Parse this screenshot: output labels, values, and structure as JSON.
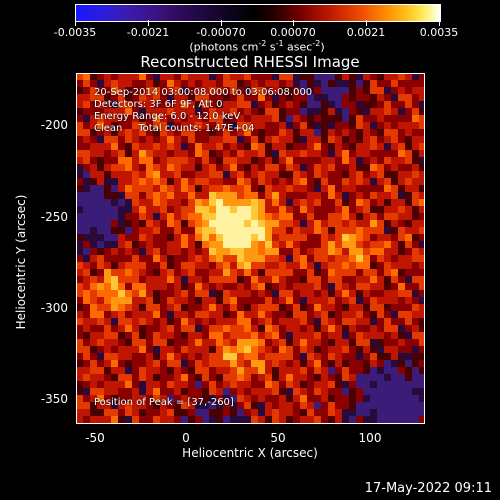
{
  "colorbar": {
    "tick_labels": [
      "-0.0035",
      "-0.0021",
      "-0.00070",
      "0.00070",
      "0.0021",
      "0.0035"
    ],
    "units_prefix": "(photons cm",
    "units_sup1": "-2",
    "units_mid1": " s",
    "units_sup2": "-1",
    "units_mid2": " asec",
    "units_sup3": "-2",
    "units_suffix": ")"
  },
  "title": "Reconstructed RHESSI Image",
  "info": {
    "line1": "20-Sep-2014 03:00:08.000 to 03:06:08.000",
    "line2": "Detectors: 3F 6F 9F, Att 0",
    "line3": "Energy Range: 6.0 - 12.0 keV",
    "line4": "Clean     Total counts: 1.47E+04"
  },
  "peak_text": "Position of Peak = [37,-260]",
  "axes": {
    "xlabel": "Heliocentric X (arcsec)",
    "ylabel": "Heliocentric Y (arcsec)",
    "xticks": [
      "-50",
      "0",
      "50",
      "100"
    ],
    "yticks": [
      "-200",
      "-250",
      "-300",
      "-350"
    ]
  },
  "timestamp": "17-May-2022 09:11"
}
